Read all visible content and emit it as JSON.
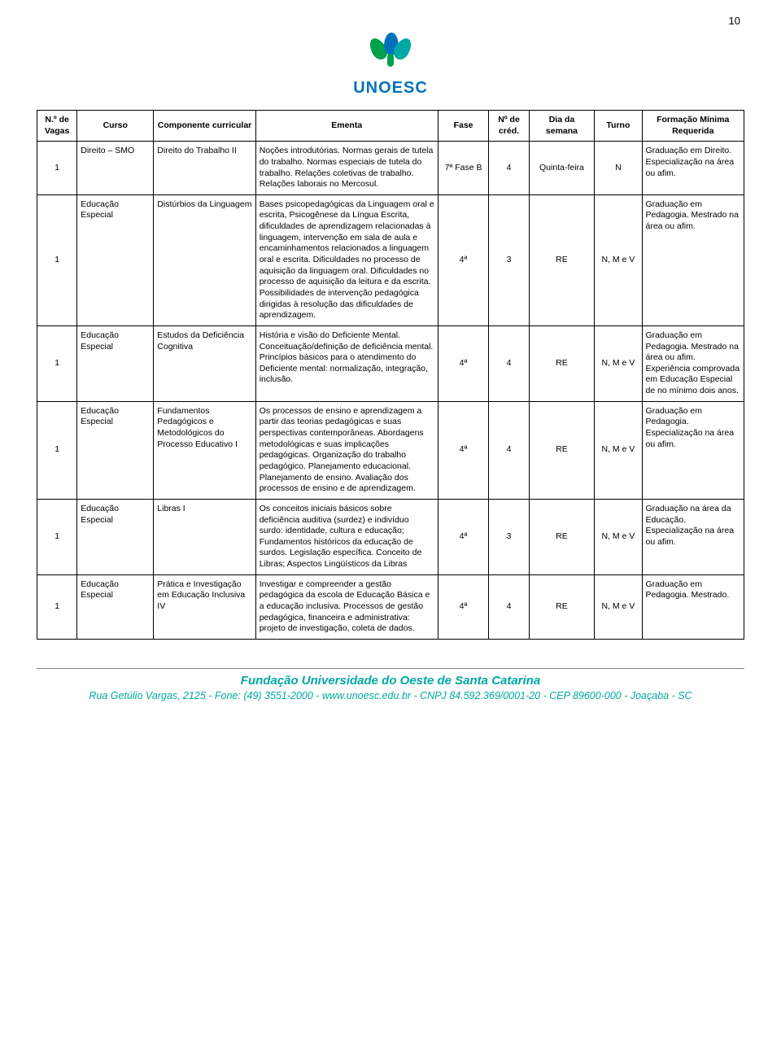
{
  "page_number": "10",
  "logo_text": "UNOESC",
  "table": {
    "headers": {
      "vagas": "N.º de Vagas",
      "curso": "Curso",
      "componente": "Componente curricular",
      "ementa": "Ementa",
      "fase": "Fase",
      "cred": "Nº de créd.",
      "dia": "Dia da semana",
      "turno": "Turno",
      "formacao": "Formação Mínima Requerida"
    },
    "rows": [
      {
        "vagas": "1",
        "curso": "Direito – SMO",
        "componente": "Direito do Trabalho II",
        "ementa": "Noções introdutórias. Normas gerais de tutela do trabalho. Normas especiais de tutela do trabalho. Relações coletivas de trabalho. Relações laborais no Mercosul.",
        "fase": "7ª Fase B",
        "cred": "4",
        "dia": "Quinta-feira",
        "turno": "N",
        "formacao": "Graduação em Direito. Especialização na área ou afim."
      },
      {
        "vagas": "1",
        "curso": "Educação Especial",
        "componente": "Distúrbios da Linguagem",
        "ementa": "Bases psicopedagógicas da Linguagem oral e escrita, Psicogênese da Língua Escrita, dificuldades de aprendizagem relacionadas à linguagem, intervenção em sala de aula e encaminhamentos relacionados a linguagem oral e escrita. Dificuldades no processo de aquisição da linguagem oral. Dificuldades no processo de aquisição da leitura e da escrita. Possibilidades de intervenção pedagógica dirigidas à resolução das dificuldades de aprendizagem.",
        "fase": "4ª",
        "cred": "3",
        "dia": "RE",
        "turno": "N, M e V",
        "formacao": "Graduação em Pedagogia. Mestrado na área ou afim."
      },
      {
        "vagas": "1",
        "curso": "Educação Especial",
        "componente": "Estudos da Deficiência Cognitiva",
        "ementa": "História e visão do Deficiente Mental. Conceituação/definição de deficiência mental. Princípios básicos para o atendimento do Deficiente mental: normalização, integração, inclusão.",
        "fase": "4ª",
        "cred": "4",
        "dia": "RE",
        "turno": "N, M e V",
        "formacao": "Graduação em Pedagogia. Mestrado na área ou afim. Experiência comprovada em Educação Especial de no mínimo dois anos."
      },
      {
        "vagas": "1",
        "curso": "Educação Especial",
        "componente": "Fundamentos Pedagógicos e Metodológicos do Processo Educativo I",
        "ementa": "Os processos de ensino e aprendizagem a partir das teorias pedagógicas e suas perspectivas contemporâneas. Abordagens metodológicas e suas implicações pedagógicas. Organização do trabalho pedagógico. Planejamento educacional. Planejamento de ensino. Avaliação dos processos de ensino e de aprendizagem.",
        "fase": "4ª",
        "cred": "4",
        "dia": "RE",
        "turno": "N, M e V",
        "formacao": "Graduação em Pedagogia. Especialização na área ou afim."
      },
      {
        "vagas": "1",
        "curso": "Educação Especial",
        "componente": "Libras I",
        "ementa": "Os conceitos iniciais básicos sobre deficiência auditiva (surdez) e indivíduo surdo: identidade, cultura e educação; Fundamentos históricos da educação de surdos. Legislação específica. Conceito de Libras; Aspectos Lingüísticos da Libras",
        "fase": "4ª",
        "cred": "3",
        "dia": "RE",
        "turno": "N, M e V",
        "formacao": "Graduação na área da Educação. Especialização na área ou afim."
      },
      {
        "vagas": "1",
        "curso": "Educação Especial",
        "componente": "Prática e Investigação em Educação Inclusiva IV",
        "ementa": "Investigar e compreender a gestão pedagógica da escola de Educação Básica e a educação inclusiva. Processos de gestão pedagógica, financeira e administrativa: projeto de investigação, coleta de dados.",
        "fase": "4ª",
        "cred": "4",
        "dia": "RE",
        "turno": "N, M e V",
        "formacao": "Graduação em Pedagogia. Mestrado."
      }
    ]
  },
  "footer": {
    "title": "Fundação Universidade do Oeste de Santa Catarina",
    "address": "Rua Getúlio Vargas, 2125 - Fone: (49) 3551-2000 - www.unoesc.edu.br - CNPJ 84.592.369/0001-20 - CEP 89600-000 - Joaçaba - SC"
  }
}
